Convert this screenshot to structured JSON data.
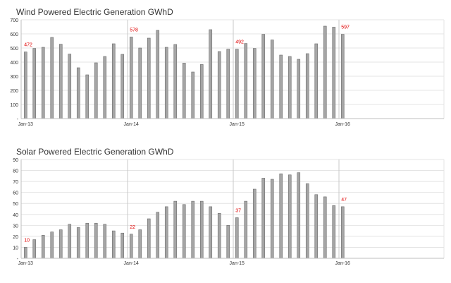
{
  "colors": {
    "bar_fill": "#a6a6a6",
    "bar_stroke": "#6b6b6b",
    "annotation": "#e00000",
    "gridline": "#e4e4e4",
    "year_divider": "#c8c8c8",
    "axis": "#bfbfbf",
    "text": "#333333"
  },
  "chart_data": [
    {
      "type": "bar",
      "title": "Wind Powered Electric Generation GWhD",
      "ylim": [
        0,
        700
      ],
      "yticks": [
        "-",
        "100",
        "200",
        "300",
        "400",
        "500",
        "600",
        "700"
      ],
      "xtick_labels": [
        {
          "label": "Jan-13",
          "index": 0
        },
        {
          "label": "Jan-14",
          "index": 12
        },
        {
          "label": "Jan-15",
          "index": 24
        },
        {
          "label": "Jan-16",
          "index": 36
        }
      ],
      "year_dividers": [
        12,
        24,
        36
      ],
      "bar_slots": 48,
      "grid": true,
      "values": [
        472,
        497,
        505,
        575,
        527,
        457,
        360,
        310,
        395,
        440,
        530,
        455,
        578,
        500,
        570,
        625,
        505,
        525,
        393,
        330,
        383,
        630,
        475,
        492,
        492,
        532,
        497,
        597,
        557,
        450,
        440,
        420,
        460,
        530,
        655,
        648,
        597
      ],
      "annotations": [
        {
          "index": 0,
          "label": "472"
        },
        {
          "index": 12,
          "label": "578"
        },
        {
          "index": 24,
          "label": "492"
        },
        {
          "index": 36,
          "label": "597"
        }
      ]
    },
    {
      "type": "bar",
      "title": "Solar Powered Electric Generation GWhD",
      "ylim": [
        0,
        90
      ],
      "yticks": [
        "-",
        "10",
        "20",
        "30",
        "40",
        "50",
        "60",
        "70",
        "80",
        "90"
      ],
      "xtick_labels": [
        {
          "label": "Jan-13",
          "index": 0
        },
        {
          "label": "Jan-14",
          "index": 12
        },
        {
          "label": "Jan-15",
          "index": 24
        },
        {
          "label": "Jan-16",
          "index": 36
        }
      ],
      "year_dividers": [
        12,
        24,
        36
      ],
      "bar_slots": 48,
      "grid": true,
      "values": [
        10,
        17,
        21,
        24,
        26,
        31,
        28,
        32,
        32,
        31,
        25,
        23,
        22,
        26,
        36,
        42,
        47,
        52,
        49,
        52,
        52,
        47,
        41,
        30,
        37,
        52,
        63,
        73,
        72,
        77,
        76,
        78,
        68,
        58,
        56,
        48,
        47
      ],
      "annotations": [
        {
          "index": 0,
          "label": "10"
        },
        {
          "index": 12,
          "label": "22"
        },
        {
          "index": 24,
          "label": "37"
        },
        {
          "index": 36,
          "label": "47"
        }
      ]
    }
  ]
}
